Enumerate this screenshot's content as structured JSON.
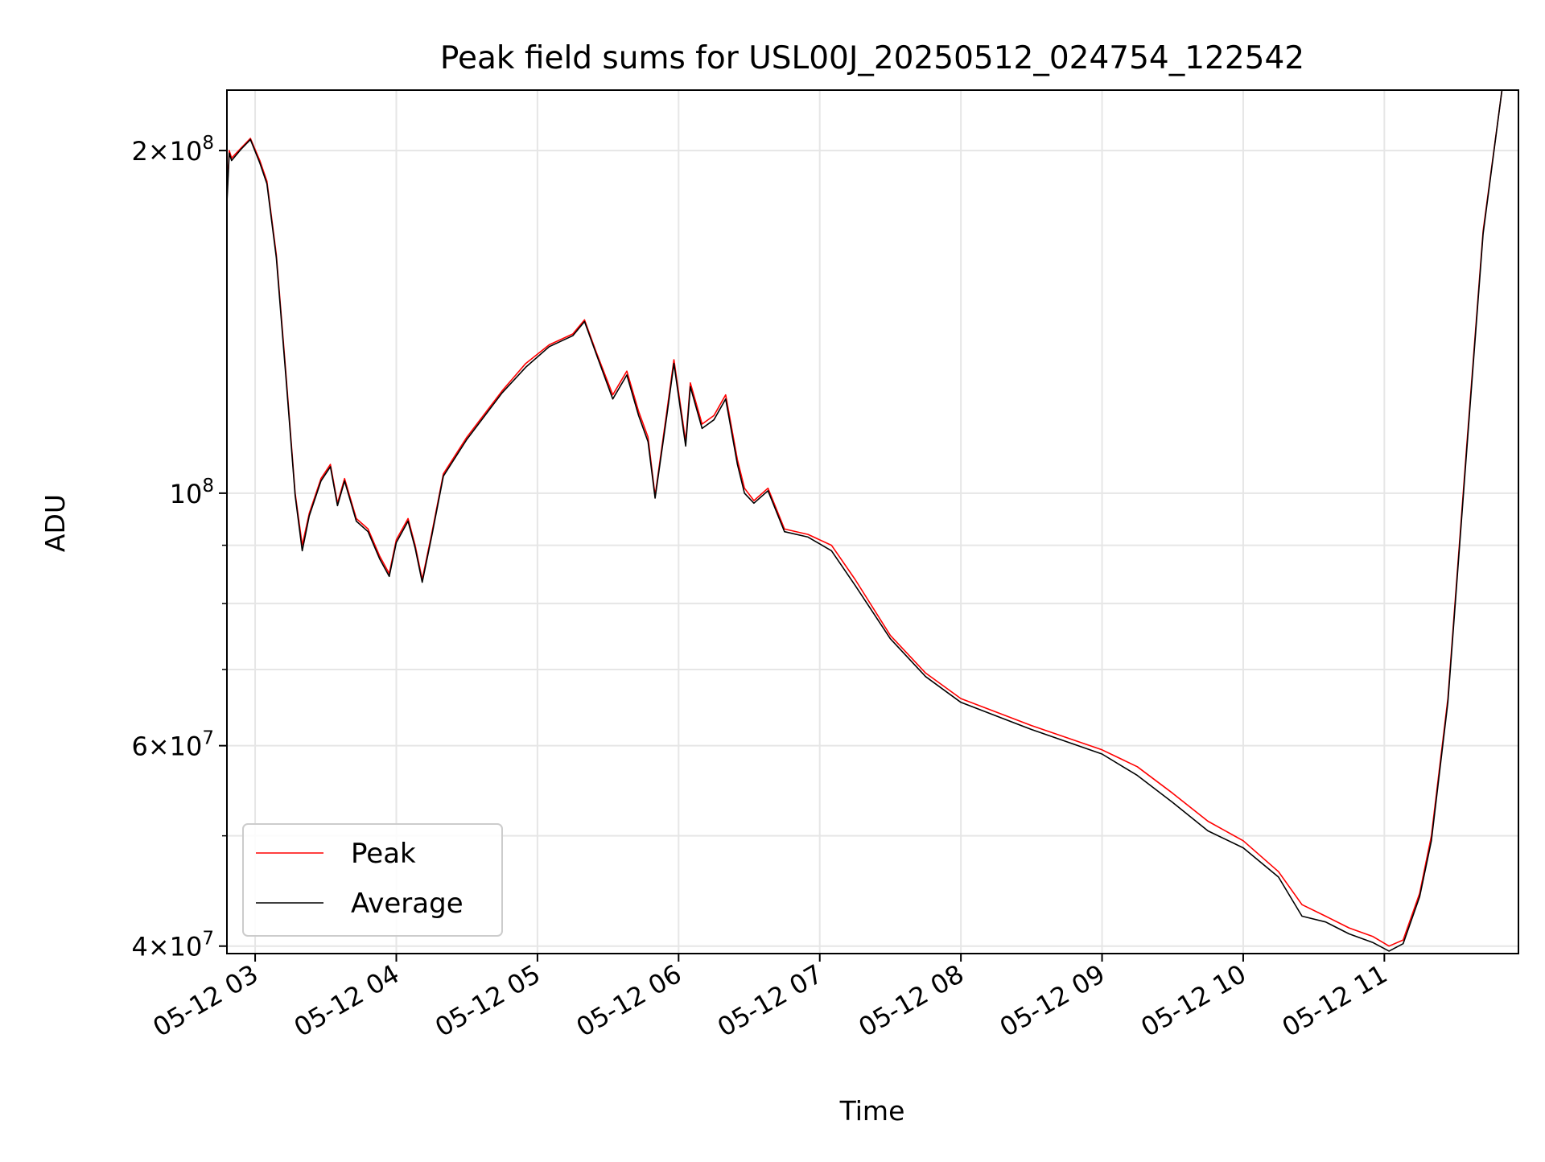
{
  "chart_data": {
    "type": "line",
    "title": "Peak field sums for USL00J_20250512_024754_122542",
    "xlabel": "Time",
    "ylabel": "ADU",
    "yscale": "log",
    "xlim": [
      "2025-05-12 02:48",
      "2025-05-12 11:57"
    ],
    "ylim": [
      39400000,
      226000000
    ],
    "grid": true,
    "legend_position": "lower-left",
    "x_ticks": [
      "2025-05-12 03:00",
      "2025-05-12 04:00",
      "2025-05-12 05:00",
      "2025-05-12 06:00",
      "2025-05-12 07:00",
      "2025-05-12 08:00",
      "2025-05-12 09:00",
      "2025-05-12 10:00",
      "2025-05-12 11:00"
    ],
    "x_tick_labels": [
      "05-12 03",
      "05-12 04",
      "05-12 05",
      "05-12 06",
      "05-12 07",
      "05-12 08",
      "05-12 09",
      "05-12 10",
      "05-12 11"
    ],
    "y_ticks": [
      {
        "value": 200000000,
        "mantissa": "2",
        "exponent": "8"
      },
      {
        "value": 100000000,
        "mantissa": "",
        "exponent": "8"
      },
      {
        "value": 60000000,
        "mantissa": "6",
        "exponent": "7"
      },
      {
        "value": 40000000,
        "mantissa": "4",
        "exponent": "7"
      }
    ],
    "y_minor_ticks": [
      50000000,
      70000000,
      80000000,
      90000000
    ],
    "series": [
      {
        "name": "Peak",
        "color": "#ff0000",
        "points": [
          [
            "2025-05-12 02:48",
            182000000
          ],
          [
            "2025-05-12 02:49",
            200000000
          ],
          [
            "2025-05-12 02:50",
            197000000
          ],
          [
            "2025-05-12 02:54",
            201000000
          ],
          [
            "2025-05-12 02:58",
            205000000
          ],
          [
            "2025-05-12 03:02",
            196000000
          ],
          [
            "2025-05-12 03:05",
            188000000
          ],
          [
            "2025-05-12 03:09",
            162000000
          ],
          [
            "2025-05-12 03:13",
            128000000
          ],
          [
            "2025-05-12 03:17",
            100000000
          ],
          [
            "2025-05-12 03:20",
            90000000
          ],
          [
            "2025-05-12 03:23",
            96000000
          ],
          [
            "2025-05-12 03:28",
            103000000
          ],
          [
            "2025-05-12 03:32",
            106000000
          ],
          [
            "2025-05-12 03:35",
            98000000
          ],
          [
            "2025-05-12 03:38",
            103000000
          ],
          [
            "2025-05-12 03:43",
            95000000
          ],
          [
            "2025-05-12 03:48",
            93000000
          ],
          [
            "2025-05-12 03:53",
            88000000
          ],
          [
            "2025-05-12 03:57",
            85000000
          ],
          [
            "2025-05-12 04:00",
            91000000
          ],
          [
            "2025-05-12 04:05",
            95000000
          ],
          [
            "2025-05-12 04:08",
            90000000
          ],
          [
            "2025-05-12 04:11",
            84000000
          ],
          [
            "2025-05-12 04:15",
            92000000
          ],
          [
            "2025-05-12 04:20",
            104000000
          ],
          [
            "2025-05-12 04:30",
            112000000
          ],
          [
            "2025-05-12 04:45",
            123000000
          ],
          [
            "2025-05-12 04:55",
            130000000
          ],
          [
            "2025-05-12 05:05",
            135000000
          ],
          [
            "2025-05-12 05:15",
            138000000
          ],
          [
            "2025-05-12 05:20",
            142000000
          ],
          [
            "2025-05-12 05:25",
            133000000
          ],
          [
            "2025-05-12 05:32",
            122000000
          ],
          [
            "2025-05-12 05:38",
            128000000
          ],
          [
            "2025-05-12 05:43",
            118000000
          ],
          [
            "2025-05-12 05:47",
            112000000
          ],
          [
            "2025-05-12 05:50",
            99500000
          ],
          [
            "2025-05-12 05:55",
            118000000
          ],
          [
            "2025-05-12 05:58",
            131000000
          ],
          [
            "2025-05-12 06:03",
            111000000
          ],
          [
            "2025-05-12 06:05",
            125000000
          ],
          [
            "2025-05-12 06:10",
            115000000
          ],
          [
            "2025-05-12 06:15",
            117000000
          ],
          [
            "2025-05-12 06:20",
            122000000
          ],
          [
            "2025-05-12 06:25",
            107000000
          ],
          [
            "2025-05-12 06:28",
            101000000
          ],
          [
            "2025-05-12 06:32",
            98500000
          ],
          [
            "2025-05-12 06:38",
            101000000
          ],
          [
            "2025-05-12 06:45",
            93000000
          ],
          [
            "2025-05-12 06:55",
            92000000
          ],
          [
            "2025-05-12 07:05",
            90000000
          ],
          [
            "2025-05-12 07:15",
            84000000
          ],
          [
            "2025-05-12 07:30",
            75000000
          ],
          [
            "2025-05-12 07:45",
            69500000
          ],
          [
            "2025-05-12 08:00",
            66000000
          ],
          [
            "2025-05-12 08:30",
            62500000
          ],
          [
            "2025-05-12 09:00",
            59500000
          ],
          [
            "2025-05-12 09:15",
            57500000
          ],
          [
            "2025-05-12 09:30",
            54500000
          ],
          [
            "2025-05-12 09:45",
            51500000
          ],
          [
            "2025-05-12 10:00",
            49500000
          ],
          [
            "2025-05-12 10:15",
            46500000
          ],
          [
            "2025-05-12 10:25",
            43500000
          ],
          [
            "2025-05-12 10:35",
            42500000
          ],
          [
            "2025-05-12 10:45",
            41500000
          ],
          [
            "2025-05-12 10:55",
            40800000
          ],
          [
            "2025-05-12 11:02",
            40000000
          ],
          [
            "2025-05-12 11:08",
            40500000
          ],
          [
            "2025-05-12 11:15",
            44500000
          ],
          [
            "2025-05-12 11:20",
            50000000
          ],
          [
            "2025-05-12 11:27",
            66000000
          ],
          [
            "2025-05-12 11:35",
            110000000
          ],
          [
            "2025-05-12 11:42",
            170000000
          ],
          [
            "2025-05-12 11:50",
            226000000
          ],
          [
            "2025-05-12 11:57",
            226000000
          ]
        ]
      },
      {
        "name": "Average",
        "color": "#000000",
        "points": [
          [
            "2025-05-12 02:48",
            180000000
          ],
          [
            "2025-05-12 02:49",
            199000000
          ],
          [
            "2025-05-12 02:50",
            196000000
          ],
          [
            "2025-05-12 02:54",
            200500000
          ],
          [
            "2025-05-12 02:58",
            204500000
          ],
          [
            "2025-05-12 03:02",
            195000000
          ],
          [
            "2025-05-12 03:05",
            187000000
          ],
          [
            "2025-05-12 03:09",
            161000000
          ],
          [
            "2025-05-12 03:13",
            127000000
          ],
          [
            "2025-05-12 03:17",
            99500000
          ],
          [
            "2025-05-12 03:20",
            89000000
          ],
          [
            "2025-05-12 03:23",
            95500000
          ],
          [
            "2025-05-12 03:28",
            102500000
          ],
          [
            "2025-05-12 03:32",
            105500000
          ],
          [
            "2025-05-12 03:35",
            97500000
          ],
          [
            "2025-05-12 03:38",
            102500000
          ],
          [
            "2025-05-12 03:43",
            94500000
          ],
          [
            "2025-05-12 03:48",
            92500000
          ],
          [
            "2025-05-12 03:53",
            87500000
          ],
          [
            "2025-05-12 03:57",
            84500000
          ],
          [
            "2025-05-12 04:00",
            90500000
          ],
          [
            "2025-05-12 04:05",
            94500000
          ],
          [
            "2025-05-12 04:08",
            89500000
          ],
          [
            "2025-05-12 04:11",
            83500000
          ],
          [
            "2025-05-12 04:15",
            91500000
          ],
          [
            "2025-05-12 04:20",
            103500000
          ],
          [
            "2025-05-12 04:30",
            111500000
          ],
          [
            "2025-05-12 04:45",
            122500000
          ],
          [
            "2025-05-12 04:55",
            129000000
          ],
          [
            "2025-05-12 05:05",
            134500000
          ],
          [
            "2025-05-12 05:15",
            137500000
          ],
          [
            "2025-05-12 05:20",
            141500000
          ],
          [
            "2025-05-12 05:25",
            132500000
          ],
          [
            "2025-05-12 05:32",
            121000000
          ],
          [
            "2025-05-12 05:38",
            127000000
          ],
          [
            "2025-05-12 05:43",
            117000000
          ],
          [
            "2025-05-12 05:47",
            111000000
          ],
          [
            "2025-05-12 05:50",
            99000000
          ],
          [
            "2025-05-12 05:55",
            117000000
          ],
          [
            "2025-05-12 05:58",
            130000000
          ],
          [
            "2025-05-12 06:03",
            110000000
          ],
          [
            "2025-05-12 06:05",
            124000000
          ],
          [
            "2025-05-12 06:10",
            114000000
          ],
          [
            "2025-05-12 06:15",
            116000000
          ],
          [
            "2025-05-12 06:20",
            121000000
          ],
          [
            "2025-05-12 06:25",
            106000000
          ],
          [
            "2025-05-12 06:28",
            100000000
          ],
          [
            "2025-05-12 06:32",
            98000000
          ],
          [
            "2025-05-12 06:38",
            100500000
          ],
          [
            "2025-05-12 06:45",
            92500000
          ],
          [
            "2025-05-12 06:55",
            91500000
          ],
          [
            "2025-05-12 07:05",
            89000000
          ],
          [
            "2025-05-12 07:15",
            83000000
          ],
          [
            "2025-05-12 07:30",
            74500000
          ],
          [
            "2025-05-12 07:45",
            69000000
          ],
          [
            "2025-05-12 08:00",
            65500000
          ],
          [
            "2025-05-12 08:30",
            62000000
          ],
          [
            "2025-05-12 09:00",
            59000000
          ],
          [
            "2025-05-12 09:15",
            56500000
          ],
          [
            "2025-05-12 09:30",
            53500000
          ],
          [
            "2025-05-12 09:45",
            50500000
          ],
          [
            "2025-05-12 10:00",
            48800000
          ],
          [
            "2025-05-12 10:15",
            46000000
          ],
          [
            "2025-05-12 10:25",
            42500000
          ],
          [
            "2025-05-12 10:35",
            42000000
          ],
          [
            "2025-05-12 10:45",
            41000000
          ],
          [
            "2025-05-12 10:55",
            40300000
          ],
          [
            "2025-05-12 11:02",
            39600000
          ],
          [
            "2025-05-12 11:08",
            40200000
          ],
          [
            "2025-05-12 11:15",
            44200000
          ],
          [
            "2025-05-12 11:20",
            49500000
          ],
          [
            "2025-05-12 11:27",
            65500000
          ],
          [
            "2025-05-12 11:35",
            109000000
          ],
          [
            "2025-05-12 11:42",
            169000000
          ],
          [
            "2025-05-12 11:50",
            226000000
          ],
          [
            "2025-05-12 11:57",
            226000000
          ]
        ]
      }
    ]
  }
}
